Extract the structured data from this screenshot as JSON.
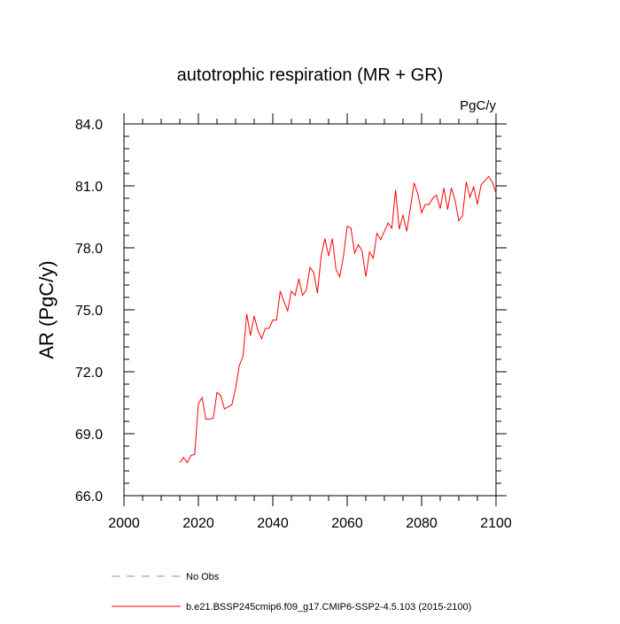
{
  "chart_data": {
    "type": "line",
    "title": "autotrophic respiration (MR + GR)",
    "units": "PgC/y",
    "ylabel": "AR  (PgC/y)",
    "xlabel": "",
    "xlim": [
      2000,
      2100
    ],
    "ylim": [
      66.0,
      84.0
    ],
    "xticks": [
      2000,
      2020,
      2040,
      2060,
      2080,
      2100
    ],
    "xtick_labels": [
      "2000",
      "2020",
      "2040",
      "2060",
      "2080",
      "2100"
    ],
    "yticks": [
      66.0,
      69.0,
      72.0,
      75.0,
      78.0,
      81.0,
      84.0
    ],
    "ytick_labels": [
      "66.0",
      "69.0",
      "72.0",
      "75.0",
      "78.0",
      "81.0",
      "84.0"
    ],
    "grid": false,
    "legend_position": "bottom",
    "series": [
      {
        "name": "No Obs",
        "color": "#8080ff",
        "style": "dashed",
        "x": [],
        "values": []
      },
      {
        "name": "b.e21.BSSP245cmip6.f09_g17.CMIP6-SSP2-4.5.103 (2015-2100)",
        "color": "#ff0000",
        "style": "solid",
        "x": [
          2015,
          2016,
          2017,
          2018,
          2019,
          2020,
          2021,
          2022,
          2023,
          2024,
          2025,
          2026,
          2027,
          2028,
          2029,
          2030,
          2031,
          2032,
          2033,
          2034,
          2035,
          2036,
          2037,
          2038,
          2039,
          2040,
          2041,
          2042,
          2043,
          2044,
          2045,
          2046,
          2047,
          2048,
          2049,
          2050,
          2051,
          2052,
          2053,
          2054,
          2055,
          2056,
          2057,
          2058,
          2059,
          2060,
          2061,
          2062,
          2063,
          2064,
          2065,
          2066,
          2067,
          2068,
          2069,
          2070,
          2071,
          2072,
          2073,
          2074,
          2075,
          2076,
          2077,
          2078,
          2079,
          2080,
          2081,
          2082,
          2083,
          2084,
          2085,
          2086,
          2087,
          2088,
          2089,
          2090,
          2091,
          2092,
          2093,
          2094,
          2095,
          2096,
          2097,
          2098,
          2099,
          2100
        ],
        "values": [
          67.6,
          67.85,
          67.6,
          67.95,
          68.0,
          70.45,
          70.75,
          69.7,
          69.7,
          69.75,
          71.0,
          70.85,
          70.2,
          70.3,
          70.4,
          71.2,
          72.3,
          72.75,
          74.8,
          73.75,
          74.7,
          74.0,
          73.6,
          74.1,
          74.1,
          74.5,
          74.5,
          75.9,
          75.4,
          74.95,
          75.9,
          75.7,
          76.5,
          75.7,
          75.95,
          77.05,
          76.8,
          75.8,
          77.6,
          78.45,
          77.6,
          78.45,
          76.95,
          76.6,
          77.6,
          79.05,
          78.95,
          77.75,
          78.15,
          77.85,
          76.6,
          77.8,
          77.5,
          78.7,
          78.4,
          78.8,
          79.2,
          78.95,
          80.8,
          78.9,
          79.6,
          78.8,
          79.95,
          81.15,
          80.6,
          79.7,
          80.1,
          80.1,
          80.4,
          80.55,
          79.9,
          80.9,
          79.85,
          80.9,
          80.3,
          79.3,
          79.55,
          81.2,
          80.45,
          80.95,
          80.1,
          81.05,
          81.25,
          81.45,
          81.2,
          80.65
        ]
      }
    ]
  }
}
